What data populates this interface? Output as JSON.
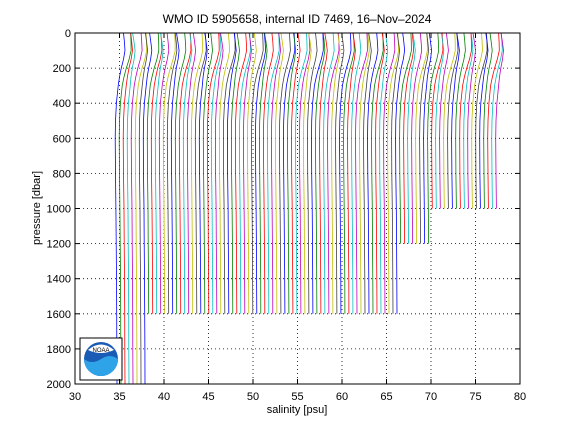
{
  "chart_data": {
    "type": "line",
    "title": "WMO ID 5905658, internal ID 7469, 16–Nov–2024",
    "xlabel": "salinity [psu]",
    "ylabel": "pressure [dbar]",
    "xlim": [
      30,
      80
    ],
    "ylim": [
      0,
      2000
    ],
    "y_reversed": true,
    "grid": true,
    "grid_style": "dotted",
    "xticks": [
      "30",
      "35",
      "40",
      "45",
      "50",
      "55",
      "60",
      "65",
      "70",
      "75",
      "80"
    ],
    "yticks": [
      "0",
      "200",
      "400",
      "600",
      "800",
      "1000",
      "1200",
      "1400",
      "1600",
      "1800",
      "2000"
    ],
    "description": "Waterfall of salinity profiles, each successive profile offset to the right.",
    "profile_offset": 0.45,
    "profile_count": 96,
    "colors": [
      "#0000ff",
      "#008000",
      "#ff0000",
      "#00bfbf",
      "#bf00bf",
      "#bfbf00",
      "#404040"
    ],
    "profile_shape": {
      "pressure": [
        0,
        50,
        100,
        150,
        200,
        250,
        300,
        400,
        500,
        600,
        800,
        1000,
        1200,
        1400,
        1600,
        1800,
        2000
      ],
      "salinity_base": [
        35.45,
        35.55,
        35.62,
        35.45,
        35.2,
        35.0,
        34.85,
        34.65,
        34.55,
        34.52,
        34.55,
        34.6,
        34.63,
        34.66,
        34.68,
        34.7,
        34.72
      ]
    },
    "max_pressure_groups": [
      {
        "from_profile": 0,
        "to_profile": 7,
        "max_pressure": 2000
      },
      {
        "from_profile": 8,
        "to_profile": 70,
        "max_pressure": 1600
      },
      {
        "from_profile": 71,
        "to_profile": 78,
        "max_pressure": 1300
      },
      {
        "from_profile": 79,
        "to_profile": 95,
        "max_pressure": 1000
      }
    ],
    "logo": "noaa-logo"
  }
}
